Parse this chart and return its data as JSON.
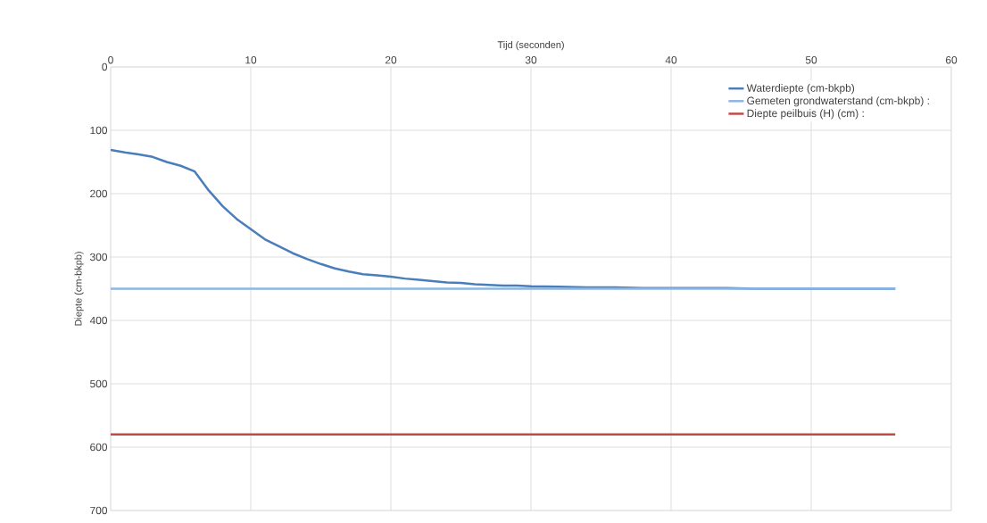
{
  "chart_data": {
    "type": "line",
    "xlabel": "Tijd (seconden)",
    "ylabel": "Diepte (cm-bkpb)",
    "xlim": [
      0,
      60
    ],
    "xticks": [
      0,
      10,
      20,
      30,
      40,
      50,
      60
    ],
    "ylim": [
      700,
      0
    ],
    "yticks": [
      0,
      100,
      200,
      300,
      400,
      500,
      600,
      700
    ],
    "grid": true,
    "legend": "top right",
    "marker": "none",
    "line_style": "solid",
    "series": [
      {
        "name": "Waterdiepte (cm-bkpb)",
        "color": "#4a7ebb",
        "x": [
          0,
          1,
          2,
          3,
          4,
          5,
          6,
          7,
          8,
          9,
          10,
          11,
          12,
          13,
          14,
          15,
          16,
          17,
          18,
          19,
          20,
          21,
          22,
          23,
          24,
          25,
          26,
          27,
          28,
          29,
          30,
          32,
          34,
          36,
          38,
          40,
          42,
          44,
          46,
          48,
          50,
          52,
          54,
          56
        ],
        "values": [
          131,
          135,
          138,
          142,
          150,
          156,
          165,
          195,
          220,
          240,
          256,
          272,
          283,
          294,
          303,
          311,
          318,
          323,
          327,
          329,
          331,
          334,
          336,
          338,
          340,
          341,
          343,
          344,
          345,
          345,
          346,
          347,
          348,
          348,
          349,
          349,
          349,
          349,
          350,
          350,
          350,
          350,
          350,
          350
        ]
      },
      {
        "name": "Gemeten grondwaterstand (cm-bkpb) :",
        "color": "#8db4e2",
        "x": [
          0,
          56
        ],
        "values": [
          350,
          350
        ]
      },
      {
        "name": "Diepte peilbuis (H) (cm) :",
        "color": "#be4b48",
        "x": [
          0,
          56
        ],
        "values": [
          580,
          580
        ]
      }
    ]
  }
}
